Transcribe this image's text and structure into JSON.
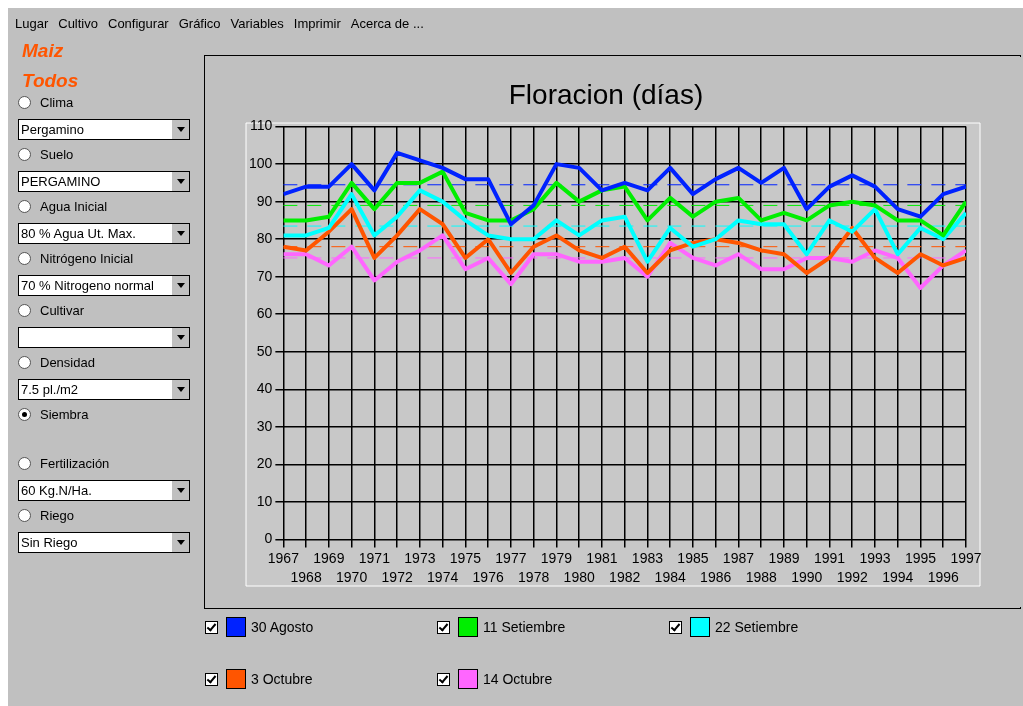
{
  "chart_data": {
    "type": "line",
    "title": "Floracion (días)",
    "x": [
      1967,
      1968,
      1969,
      1970,
      1971,
      1972,
      1973,
      1974,
      1975,
      1976,
      1977,
      1978,
      1979,
      1980,
      1981,
      1982,
      1983,
      1984,
      1985,
      1986,
      1987,
      1988,
      1989,
      1990,
      1991,
      1992,
      1993,
      1994,
      1995,
      1996,
      1997
    ],
    "xlim": [
      1967,
      1997
    ],
    "xticks": [
      1967,
      {
        "value": 1968,
        "label": null
      },
      1969,
      {
        "value": 1970,
        "label": null
      },
      1971,
      {
        "value": 1972,
        "label": null
      },
      1973,
      {
        "value": 1974,
        "label": null
      },
      1975,
      {
        "value": 1976,
        "label": null
      },
      1977,
      {
        "value": 1978,
        "label": null
      },
      1979,
      {
        "value": 1980,
        "label": null
      },
      1981,
      {
        "value": 1982,
        "label": null
      },
      1983,
      {
        "value": 1984,
        "label": null
      },
      1985,
      {
        "value": 1986,
        "label": null
      },
      1987,
      {
        "value": 1988,
        "label": null
      },
      1989,
      {
        "value": 1990,
        "label": null
      },
      1991,
      {
        "value": 1992,
        "label": null
      },
      1993,
      {
        "value": 1994,
        "label": null
      },
      1995,
      {
        "value": 1996,
        "label": null
      },
      1997
    ],
    "x2lim": [
      1967,
      1997
    ],
    "x2ticks": [
      1968,
      1970,
      1972,
      1974,
      1976,
      1978,
      1980,
      1982,
      1984,
      1986,
      1988,
      1990,
      1992,
      1994,
      1996
    ],
    "ylim": [
      0,
      110
    ],
    "yticks": [
      0,
      10,
      20,
      30,
      40,
      50,
      60,
      70,
      80,
      90,
      100,
      110
    ],
    "grid": true,
    "legend": "bottom",
    "marker": "none",
    "series": [
      {
        "name": "30 Agosto",
        "color": "#0022ff",
        "values": [
          92,
          94,
          94,
          100,
          93,
          103,
          101,
          99,
          96,
          96,
          84,
          89,
          100,
          99,
          93,
          95,
          93,
          99,
          92,
          96,
          99,
          95,
          99,
          88,
          94,
          97,
          94,
          88,
          86,
          92,
          94
        ]
      },
      {
        "name": "11 Setiembre",
        "color": "#00ee00",
        "values": [
          85,
          85,
          86,
          95,
          88,
          95,
          95,
          98,
          87,
          85,
          85,
          88,
          95,
          90,
          93,
          94,
          85,
          91,
          86,
          90,
          91,
          85,
          87,
          85,
          89,
          90,
          89,
          85,
          85,
          81,
          90
        ]
      },
      {
        "name": "22 Setiembre",
        "color": "#00ffff",
        "values": [
          81,
          81,
          83,
          92,
          81,
          86,
          93,
          90,
          85,
          81,
          80,
          80,
          85,
          81,
          85,
          86,
          74,
          83,
          78,
          80,
          85,
          84,
          84,
          76,
          85,
          82,
          88,
          76,
          83,
          80,
          87
        ]
      },
      {
        "name": "3 Octubre",
        "color": "#ff5500",
        "values": [
          78,
          77,
          82,
          88,
          75,
          81,
          88,
          84,
          75,
          80,
          71,
          78,
          81,
          77,
          75,
          78,
          71,
          77,
          79,
          80,
          79,
          77,
          76,
          71,
          75,
          83,
          75,
          71,
          76,
          73,
          75
        ]
      },
      {
        "name": "14 Octubre",
        "color": "#ff66ff",
        "values": [
          76,
          76,
          73,
          78,
          69,
          74,
          77,
          81,
          72,
          75,
          68,
          76,
          76,
          74,
          74,
          75,
          70,
          79,
          75,
          73,
          76,
          72,
          72,
          75,
          75,
          74,
          77,
          75,
          67,
          73,
          77
        ]
      }
    ],
    "ref_lines": [
      {
        "axis": "y",
        "value": 94.5,
        "color": "#0022ff",
        "line_style": "dashed"
      },
      {
        "axis": "y",
        "value": 89,
        "color": "#00ee00",
        "line_style": "dashed"
      },
      {
        "axis": "y",
        "value": 83.5,
        "color": "#00ffff",
        "line_style": "dashed"
      },
      {
        "axis": "y",
        "value": 78,
        "color": "#ff5500",
        "line_style": "dashed"
      },
      {
        "axis": "y",
        "value": 75,
        "color": "#ff66ff",
        "line_style": "dashed"
      }
    ],
    "annotations": [
      "Lugar",
      "Cultivo",
      "Configurar",
      "Gráfico",
      "Variables",
      "Imprimir",
      "Acerca de ...",
      "Maiz",
      "Todos",
      "Clima",
      "Pergamino",
      "Suelo",
      "PERGAMINO",
      "Agua Inicial",
      "80 % Agua Ut. Max.",
      "Nitrógeno Inicial",
      "70 % Nitrogeno normal",
      "Cultivar",
      "Densidad",
      "7.5 pl./m2",
      "Siembra",
      "Fertilización",
      "60 Kg.N/Ha.",
      "Riego",
      "Sin Riego"
    ]
  }
}
